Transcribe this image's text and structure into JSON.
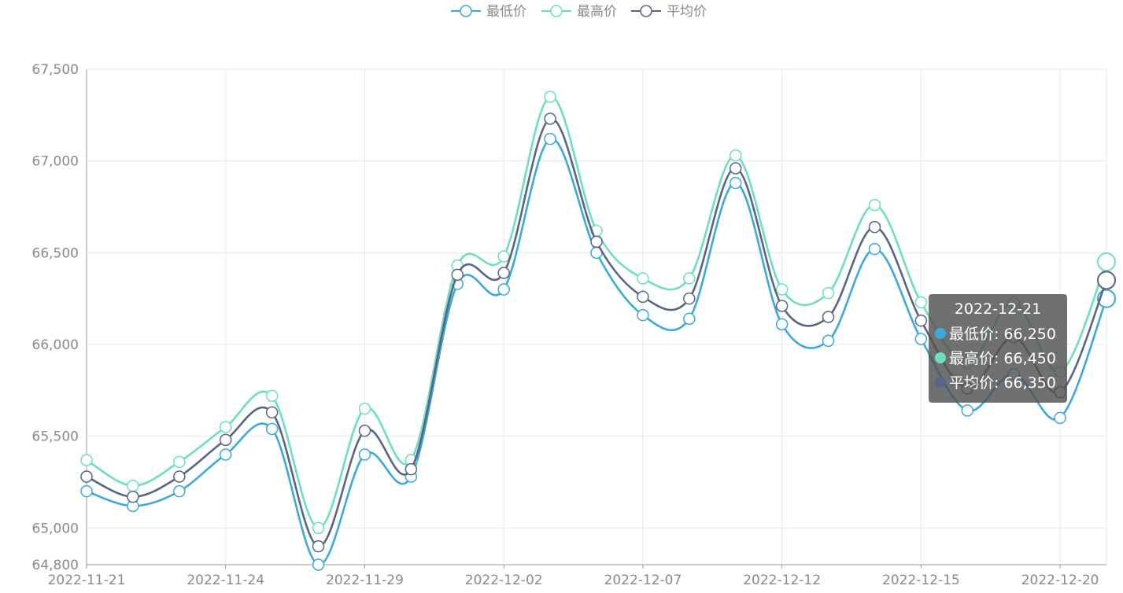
{
  "chart_data": {
    "type": "line",
    "smooth": true,
    "grid": true,
    "legend_position": "top-center",
    "title": "",
    "xlabel": "",
    "ylabel": "",
    "ylim": [
      64800,
      67500
    ],
    "y_ticks": [
      64800,
      65000,
      65500,
      66000,
      66500,
      67000,
      67500
    ],
    "y_tick_labels": [
      "64,800",
      "65,000",
      "65,500",
      "66,000",
      "66,500",
      "67,000",
      "67,500"
    ],
    "x": [
      "2022-11-21",
      "2022-11-22",
      "2022-11-23",
      "2022-11-24",
      "2022-11-25",
      "2022-11-28",
      "2022-11-29",
      "2022-11-30",
      "2022-12-01",
      "2022-12-02",
      "2022-12-05",
      "2022-12-06",
      "2022-12-07",
      "2022-12-08",
      "2022-12-09",
      "2022-12-12",
      "2022-12-13",
      "2022-12-14",
      "2022-12-15",
      "2022-12-16",
      "2022-12-19",
      "2022-12-20",
      "2022-12-21"
    ],
    "x_tick_labels_shown": [
      "2022-11-21",
      "2022-11-24",
      "2022-11-29",
      "2022-12-02",
      "2022-12-07",
      "2022-12-12",
      "2022-12-15",
      "2022-12-20"
    ],
    "series": [
      {
        "name": "最低价",
        "color": "#3aa9dd",
        "values": [
          65200,
          65120,
          65200,
          65400,
          65540,
          64800,
          65400,
          65280,
          66330,
          66300,
          67120,
          66500,
          66160,
          66140,
          66880,
          66110,
          66020,
          66520,
          66030,
          65640,
          65840,
          65600,
          66250
        ]
      },
      {
        "name": "最高价",
        "color": "#6bdfbf",
        "values": [
          65370,
          65230,
          65360,
          65550,
          65720,
          65000,
          65650,
          65370,
          66430,
          66480,
          67350,
          66620,
          66360,
          66360,
          67030,
          66300,
          66280,
          66760,
          66230,
          65900,
          66230,
          65850,
          66450
        ]
      },
      {
        "name": "平均价",
        "color": "#5a6486",
        "values": [
          65280,
          65170,
          65280,
          65480,
          65630,
          64900,
          65530,
          65320,
          66380,
          66390,
          67230,
          66560,
          66260,
          66250,
          66960,
          66210,
          66150,
          66640,
          66130,
          65760,
          66040,
          65740,
          66350
        ]
      }
    ]
  },
  "tooltip": {
    "title": "2022-12-21",
    "rows": [
      {
        "text": "最低价: 66,250",
        "color": "#3aa9dd"
      },
      {
        "text": "最高价: 66,450",
        "color": "#6bdfbf"
      },
      {
        "text": "平均价: 66,350",
        "color": "#5a6486"
      }
    ]
  }
}
